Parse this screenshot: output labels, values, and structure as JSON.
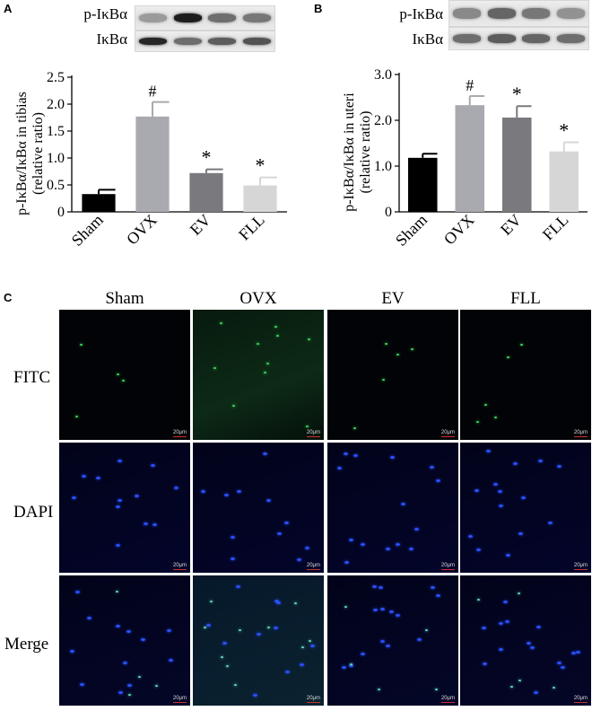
{
  "panels": {
    "A": "A",
    "B": "B",
    "C": "C"
  },
  "blots": {
    "A": {
      "rows": [
        "p-IκBα",
        "IκBα"
      ],
      "bands": [
        [
          0.25,
          0.95,
          0.5,
          0.45
        ],
        [
          0.9,
          0.5,
          0.6,
          0.65
        ]
      ]
    },
    "B": {
      "rows": [
        "p-IκBα",
        "IκBα"
      ],
      "bands": [
        [
          0.35,
          0.55,
          0.45,
          0.3
        ],
        [
          0.5,
          0.6,
          0.55,
          0.5
        ]
      ]
    }
  },
  "chart_data": [
    {
      "type": "bar",
      "categories": [
        "Sham",
        "OVX",
        "EV",
        "FLL"
      ],
      "values": [
        0.33,
        1.77,
        0.72,
        0.49
      ],
      "errors": [
        0.08,
        0.27,
        0.07,
        0.15
      ],
      "annotations": [
        "",
        "#",
        "*",
        "*"
      ],
      "colors": [
        "#000000",
        "#a9a9b0",
        "#7a7a7e",
        "#d6d6d6"
      ],
      "yticks": [
        "0",
        "0.5",
        "1.0",
        "1.5",
        "2.0",
        "2.5"
      ],
      "ylim": [
        0,
        2.5
      ],
      "ylabel_line1": "p-IκBα/IκBα in tibias",
      "ylabel_line2": "(relative ratio)"
    },
    {
      "type": "bar",
      "categories": [
        "Sham",
        "OVX",
        "EV",
        "FLL"
      ],
      "values": [
        1.18,
        2.33,
        2.06,
        1.32
      ],
      "errors": [
        0.09,
        0.2,
        0.25,
        0.2
      ],
      "annotations": [
        "",
        "#",
        "*",
        "*"
      ],
      "colors": [
        "#000000",
        "#a9a9b0",
        "#7a7a7e",
        "#d6d6d6"
      ],
      "yticks": [
        "0",
        "1.0",
        "2.0",
        "3.0"
      ],
      "ylim": [
        0,
        3.0
      ],
      "ylabel_line1": "p-IκBα/IκBα in uteri",
      "ylabel_line2": "(relative ratio)"
    }
  ],
  "microscopy": {
    "columns": [
      "Sham",
      "OVX",
      "EV",
      "FLL"
    ],
    "rows": [
      "FITC",
      "DAPI",
      "Merge"
    ],
    "scale_bar": "20μm",
    "colors": {
      "fitc": "#38d85a",
      "dapi": "#2a50ff",
      "merge_green": "#5cd8b8"
    },
    "green_cells": [
      4,
      10,
      5,
      5
    ],
    "blue_cells": [
      12,
      11,
      14,
      14
    ]
  }
}
